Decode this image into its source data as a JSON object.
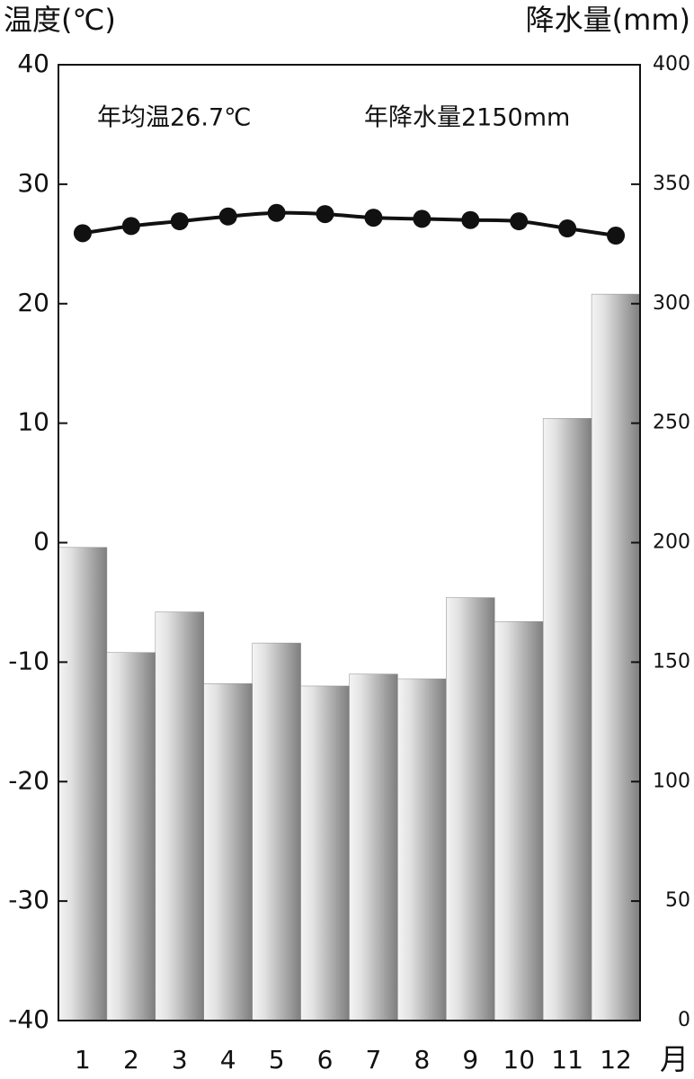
{
  "chart_data": {
    "type": "bar-line",
    "ylabel": "温度(℃)",
    "y2label": "降水量(mm)",
    "xlabel": "月",
    "annotations": [
      "年均温26.7℃",
      "年降水量2150mm"
    ],
    "categories": [
      "1",
      "2",
      "3",
      "4",
      "5",
      "6",
      "7",
      "8",
      "9",
      "10",
      "11",
      "12"
    ],
    "series": [
      {
        "type": "line",
        "axis": "y",
        "color": "#111111",
        "values": [
          25.9,
          26.5,
          26.9,
          27.3,
          27.6,
          27.5,
          27.2,
          27.1,
          27.0,
          26.9,
          26.3,
          25.7
        ]
      },
      {
        "type": "bar",
        "axis": "y2",
        "color": "#8a8a8a",
        "values": [
          198,
          154,
          171,
          141,
          158,
          140,
          145,
          143,
          177,
          167,
          252,
          304
        ]
      }
    ],
    "ylim": [
      -40,
      40
    ],
    "yticks": [
      -40,
      -30,
      -20,
      -10,
      0,
      10,
      20,
      30,
      40
    ],
    "y2lim": [
      0,
      400
    ],
    "y2ticks": [
      0,
      50,
      100,
      150,
      200,
      250,
      300,
      350,
      400
    ]
  }
}
